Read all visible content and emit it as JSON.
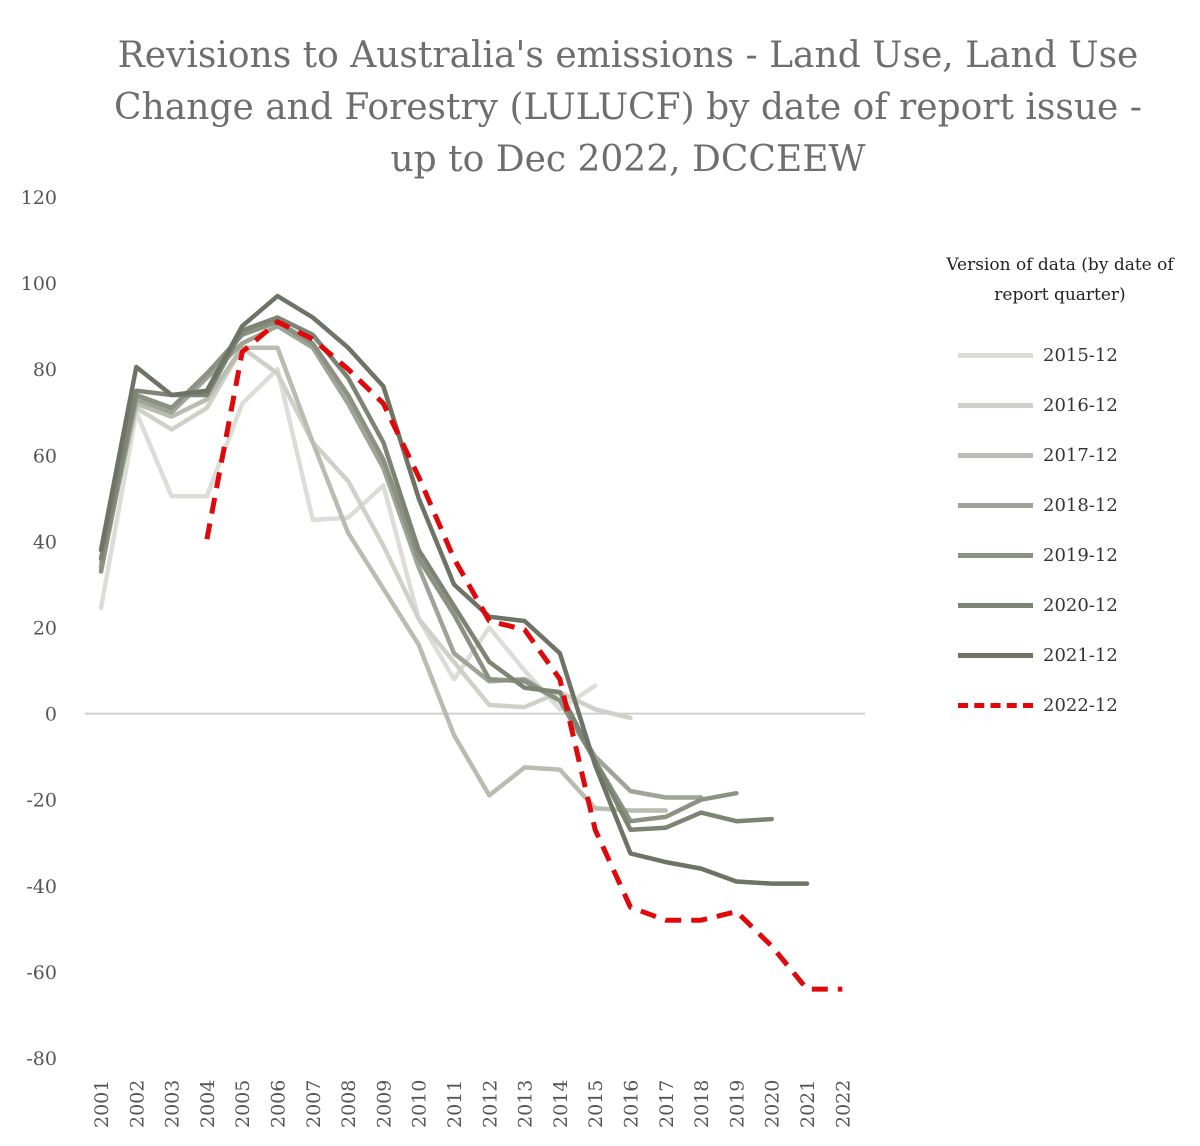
{
  "chart_data": {
    "type": "line",
    "title": "Revisions to Australia's emissions - Land Use, Land Use Change and Forestry (LULUCF)  by date of report issue - up to Dec 2022, DCCEEW",
    "xlabel": "",
    "ylabel": "",
    "ylim": [
      -80,
      120
    ],
    "yticks": [
      120,
      100,
      80,
      60,
      40,
      20,
      0,
      -20,
      -40,
      -60,
      -80
    ],
    "categories": [
      "2001",
      "2002",
      "2003",
      "2004",
      "2005",
      "2006",
      "2007",
      "2008",
      "2009",
      "2010",
      "2011",
      "2012",
      "2013",
      "2014",
      "2015",
      "2016",
      "2017",
      "2018",
      "2019",
      "2020",
      "2021",
      "2022"
    ],
    "grid": false,
    "legend_title": "Version of data (by date of report quarter)",
    "legend_position": "right",
    "series": [
      {
        "name": "2015-12",
        "color": "#dcddd7",
        "dashed": false,
        "values": [
          24.5,
          70,
          50.5,
          50.5,
          72,
          80,
          45,
          45.5,
          53,
          22,
          8,
          20,
          10,
          1,
          6.5,
          null,
          null,
          null,
          null,
          null,
          null,
          null
        ]
      },
      {
        "name": "2016-12",
        "color": "#cfd1c9",
        "dashed": false,
        "values": [
          36,
          71,
          66,
          71,
          85,
          79,
          63,
          54,
          39,
          22,
          12,
          2,
          1.5,
          5,
          1,
          -1,
          null,
          null,
          null,
          null,
          null,
          null
        ]
      },
      {
        "name": "2017-12",
        "color": "#b8bcb1",
        "dashed": false,
        "values": [
          35,
          72,
          69,
          73,
          85,
          85,
          63,
          42,
          29,
          16,
          -5,
          -19,
          -12.5,
          -13,
          -22,
          -22.5,
          -22.5,
          null,
          null,
          null,
          null,
          null
        ]
      },
      {
        "name": "2018-12",
        "color": "#9ea497",
        "dashed": false,
        "values": [
          34,
          73,
          70,
          78,
          86,
          90,
          85,
          72,
          57,
          34,
          14,
          7.5,
          8,
          3,
          -10,
          -18,
          -19.5,
          -19.5,
          null,
          null,
          null,
          null
        ]
      },
      {
        "name": "2019-12",
        "color": "#8b9283",
        "dashed": false,
        "values": [
          33,
          74,
          71,
          79,
          88,
          91,
          86,
          74,
          59,
          36,
          23,
          8,
          7.5,
          3,
          -11,
          -25,
          -24,
          -20,
          -18.5,
          null,
          null,
          null
        ]
      },
      {
        "name": "2020-12",
        "color": "#7c8473",
        "dashed": false,
        "values": [
          36,
          75,
          74,
          74,
          89,
          92,
          88,
          78,
          63,
          38,
          25,
          12,
          6,
          5,
          -11,
          -27,
          -26.5,
          -23,
          -25,
          -24.5,
          null,
          null
        ]
      },
      {
        "name": "2021-12",
        "color": "#6d7465",
        "dashed": false,
        "values": [
          38,
          80.5,
          74,
          75,
          90,
          97,
          92,
          85,
          76,
          50,
          30,
          22.5,
          21.5,
          14,
          -12,
          -32.5,
          -34.5,
          -36,
          -39,
          -39.5,
          -39.5,
          null
        ]
      },
      {
        "name": "2022-12",
        "color": "#e0080a",
        "dashed": true,
        "values": [
          null,
          null,
          null,
          40.5,
          84,
          91,
          87,
          80,
          72,
          55,
          36,
          21.5,
          19.5,
          8,
          -27,
          -45,
          -48,
          -48,
          -46,
          -54,
          -64,
          -64
        ]
      }
    ]
  }
}
